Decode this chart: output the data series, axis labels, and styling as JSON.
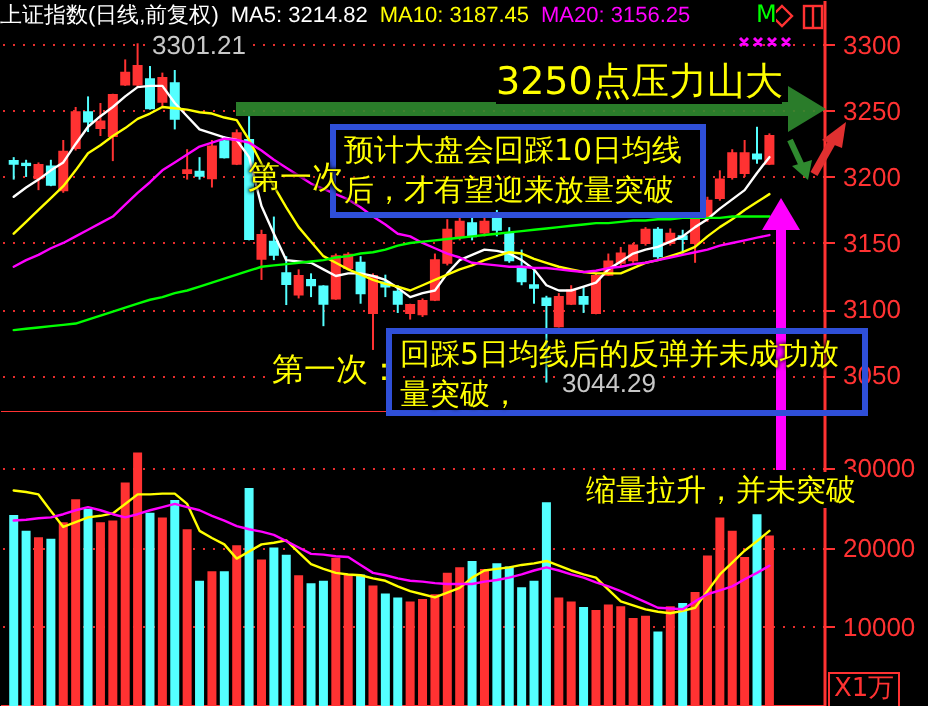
{
  "chart_data": [
    {
      "type": "candlestick",
      "title": "上证指数(日线,前复权)",
      "legend": "top",
      "grid": "y",
      "tick_labels": "y",
      "categories": [
        null,
        null,
        null,
        null,
        null,
        null,
        null,
        null,
        null,
        null,
        null,
        null,
        null,
        null,
        null,
        null,
        null,
        null,
        null,
        null,
        null,
        null,
        null,
        null,
        null,
        null,
        null,
        null,
        null,
        null,
        null,
        null,
        null,
        null,
        null,
        null,
        null,
        null,
        null,
        null,
        null,
        null,
        null,
        null,
        null,
        null,
        null,
        null,
        null,
        null,
        null,
        null,
        null,
        null,
        null,
        null,
        null,
        null,
        null,
        null,
        null,
        null
      ],
      "ohlc": [
        [
          3212,
          3215,
          3198,
          3210
        ],
        [
          3210,
          3213,
          3200,
          3209
        ],
        [
          3199,
          3211,
          3190,
          3209
        ],
        [
          3208,
          3213,
          3193,
          3194
        ],
        [
          3190,
          3228,
          3188,
          3219
        ],
        [
          3222,
          3253,
          3220,
          3249
        ],
        [
          3249,
          3261,
          3234,
          3242
        ],
        [
          3237,
          3256,
          3231,
          3242
        ],
        [
          3231,
          3263,
          3212,
          3262
        ],
        [
          3270,
          3289,
          3269,
          3279
        ],
        [
          3270,
          3301.21,
          3268,
          3284
        ],
        [
          3274,
          3284,
          3251,
          3252
        ],
        [
          3257,
          3279,
          3253,
          3275
        ],
        [
          3271,
          3281,
          3236,
          3244
        ],
        [
          3203,
          3221,
          3198,
          3205
        ],
        [
          3204,
          3215,
          3198,
          3201
        ],
        [
          3199,
          3228,
          3192,
          3223
        ],
        [
          3227,
          3231,
          3214,
          3215
        ],
        [
          3210,
          3236,
          3209,
          3233
        ],
        [
          3228,
          3246,
          3152,
          3153
        ],
        [
          3138,
          3160,
          3122,
          3156
        ],
        [
          3151,
          3170,
          3137,
          3141
        ],
        [
          3127,
          3140,
          3103,
          3119
        ],
        [
          3111,
          3130,
          3108,
          3125
        ],
        [
          3122,
          3127,
          3109,
          3118
        ],
        [
          3117,
          3118,
          3087,
          3104
        ],
        [
          3108,
          3142,
          3107,
          3140
        ],
        [
          3131,
          3143,
          3130,
          3141
        ],
        [
          3135,
          3140,
          3104,
          3112
        ],
        [
          3097,
          3127,
          3069,
          3125
        ],
        [
          3120,
          3126,
          3109,
          3117
        ],
        [
          3113,
          3118,
          3097,
          3104
        ],
        [
          3097,
          3104,
          3092,
          3103
        ],
        [
          3096,
          3108,
          3094,
          3106
        ],
        [
          3107,
          3142,
          3106,
          3137
        ],
        [
          3135,
          3168,
          3133,
          3160
        ],
        [
          3155,
          3170,
          3152,
          3166
        ],
        [
          3165,
          3172,
          3152,
          3155
        ],
        [
          3158,
          3170,
          3155,
          3166
        ],
        [
          3170,
          3175,
          3155,
          3160
        ],
        [
          3157,
          3162,
          3135,
          3137
        ],
        [
          3132,
          3145,
          3118,
          3121
        ],
        [
          3118,
          3130,
          3104,
          3116
        ],
        [
          3108,
          3110,
          3044.29,
          3103
        ],
        [
          3087,
          3112,
          3086,
          3109
        ],
        [
          3104,
          3118,
          3103,
          3114
        ],
        [
          3109,
          3117,
          3097,
          3104
        ],
        [
          3097,
          3127,
          3096,
          3125
        ],
        [
          3126,
          3142,
          3125,
          3136
        ],
        [
          3135,
          3147,
          3132,
          3142
        ],
        [
          3137,
          3150,
          3135,
          3148
        ],
        [
          3150,
          3162,
          3148,
          3160
        ],
        [
          3160,
          3162,
          3138,
          3140
        ],
        [
          3150,
          3161,
          3148,
          3157
        ],
        [
          3155,
          3160,
          3142,
          3153
        ],
        [
          3150,
          3170,
          3135,
          3168
        ],
        [
          3169,
          3185,
          3166,
          3182
        ],
        [
          3184,
          3205,
          3182,
          3198
        ],
        [
          3200,
          3221,
          3198,
          3218
        ],
        [
          3203,
          3228,
          3200,
          3218
        ],
        [
          3217,
          3238,
          3210,
          3214
        ],
        [
          3210,
          3233,
          3209,
          3231
        ]
      ],
      "colors": [
        "#54ffff",
        "#54ffff",
        "#ff3232",
        "#54ffff",
        "#ff3232",
        "#ff3232",
        "#54ffff",
        "#ff3232",
        "#ff3232",
        "#ff3232",
        "#ff3232",
        "#54ffff",
        "#ff3232",
        "#54ffff",
        "#ff3232",
        "#54ffff",
        "#ff3232",
        "#54ffff",
        "#ff3232",
        "#54ffff",
        "#ff3232",
        "#54ffff",
        "#54ffff",
        "#ff3232",
        "#54ffff",
        "#54ffff",
        "#ff3232",
        "#ff3232",
        "#54ffff",
        "#ff3232",
        "#54ffff",
        "#54ffff",
        "#ff3232",
        "#ff3232",
        "#ff3232",
        "#ff3232",
        "#ff3232",
        "#54ffff",
        "#ff3232",
        "#54ffff",
        "#54ffff",
        "#54ffff",
        "#54ffff",
        "#54ffff",
        "#ff3232",
        "#ff3232",
        "#54ffff",
        "#ff3232",
        "#ff3232",
        "#ff3232",
        "#ff3232",
        "#ff3232",
        "#54ffff",
        "#ff3232",
        "#54ffff",
        "#ff3232",
        "#ff3232",
        "#ff3232",
        "#ff3232",
        "#ff3232",
        "#54ffff",
        "#ff3232"
      ],
      "series": [
        {
          "name": "MA5: 3214.82",
          "color": "#ffffff",
          "type": "line",
          "values": [
            3185,
            3192,
            3198,
            3205,
            3211,
            3225,
            3238,
            3246,
            3253,
            3261,
            3268,
            3269,
            3269,
            3256,
            3246,
            3236,
            3233,
            3230,
            3228,
            3215,
            3178,
            3157,
            3137,
            3136,
            3135,
            3130,
            3125,
            3127,
            3127,
            3125,
            3122,
            3116,
            3109,
            3112,
            3114,
            3127,
            3137,
            3141,
            3145,
            3144,
            3142,
            3137,
            3130,
            3118,
            3114,
            3114,
            3117,
            3120,
            3130,
            3136,
            3142,
            3145,
            3147,
            3151,
            3155,
            3162,
            3168,
            3176,
            3183,
            3190,
            3203,
            3215
          ]
        },
        {
          "name": "MA10: 3187.45",
          "color": "#ffff00",
          "type": "line",
          "values": [
            3157,
            3166,
            3175,
            3184,
            3193,
            3205,
            3218,
            3224,
            3231,
            3237,
            3244,
            3248,
            3253,
            3252,
            3251,
            3249,
            3248,
            3245,
            3243,
            3228,
            3210,
            3193,
            3177,
            3162,
            3151,
            3140,
            3135,
            3130,
            3126,
            3122,
            3119,
            3117,
            3114,
            3118,
            3122,
            3126,
            3130,
            3133,
            3137,
            3140,
            3143,
            3142,
            3138,
            3135,
            3132,
            3130,
            3128,
            3127,
            3127,
            3127,
            3131,
            3135,
            3137,
            3140,
            3143,
            3147,
            3155,
            3162,
            3168,
            3175,
            3181,
            3187
          ]
        },
        {
          "name": "MA20: 3156.25",
          "color": "#ff00ff",
          "type": "line",
          "values": [
            3132,
            3137,
            3141,
            3146,
            3150,
            3155,
            3160,
            3165,
            3170,
            3179,
            3188,
            3196,
            3205,
            3211,
            3217,
            3223,
            3226,
            3229,
            3228,
            3226,
            3220,
            3213,
            3207,
            3201,
            3195,
            3191,
            3187,
            3183,
            3177,
            3170,
            3164,
            3157,
            3155,
            3150,
            3146,
            3142,
            3139,
            3135,
            3134,
            3133,
            3132,
            3132,
            3131,
            3131,
            3130,
            3129,
            3128,
            3129,
            3131,
            3132,
            3134,
            3135,
            3137,
            3139,
            3141,
            3143,
            3145,
            3148,
            3150,
            3152,
            3154,
            3156
          ]
        },
        {
          "color": "#00ff00",
          "type": "line",
          "values": [
            3084,
            3085,
            3086,
            3087,
            3088,
            3089,
            3092,
            3095,
            3098,
            3101,
            3104,
            3107,
            3109,
            3112,
            3114,
            3117,
            3120,
            3123,
            3126,
            3129,
            3132,
            3133,
            3134,
            3135,
            3136,
            3137,
            3139,
            3140,
            3142,
            3143,
            3145,
            3148,
            3150,
            3151,
            3152,
            3153,
            3154,
            3155,
            3156,
            3157,
            3158,
            3159,
            3160,
            3161,
            3162,
            3163,
            3164,
            3165,
            3165,
            3166,
            3167,
            3167,
            3168,
            3168,
            3169,
            3169,
            3169,
            3169,
            3170,
            3170,
            3170,
            3170
          ]
        }
      ],
      "ylim": [
        3022,
        3334
      ],
      "yticks": [
        3050,
        3100,
        3150,
        3200,
        3250,
        3300
      ],
      "annotations": [
        "3250点压力山大",
        "预计大盘会回踩10日均线后，才有望迎来放量突破",
        "第一次",
        "第一次：",
        "回踩5日均线后的反弹并未成功放量突破，",
        "M",
        "3301.21",
        "3044.29"
      ]
    },
    {
      "type": "bar",
      "grid": "y",
      "tick_labels": "y",
      "categories": [
        null,
        null,
        null,
        null,
        null,
        null,
        null,
        null,
        null,
        null,
        null,
        null,
        null,
        null,
        null,
        null,
        null,
        null,
        null,
        null,
        null,
        null,
        null,
        null,
        null,
        null,
        null,
        null,
        null,
        null,
        null,
        null,
        null,
        null,
        null,
        null,
        null,
        null,
        null,
        null,
        null,
        null,
        null,
        null,
        null,
        null,
        null,
        null,
        null,
        null,
        null,
        null,
        null,
        null,
        null,
        null,
        null,
        null,
        null,
        null,
        null,
        null
      ],
      "values": [
        24100,
        22100,
        21300,
        21100,
        23200,
        26100,
        24900,
        23200,
        23400,
        28200,
        32000,
        24400,
        23800,
        26000,
        22300,
        15800,
        17000,
        17000,
        20300,
        27500,
        18500,
        20000,
        19100,
        16500,
        15500,
        15800,
        18700,
        16600,
        16600,
        15200,
        14200,
        13700,
        13200,
        13500,
        14100,
        16800,
        17500,
        18300,
        17300,
        18000,
        17600,
        15000,
        15800,
        25700,
        13700,
        13200,
        12500,
        12100,
        12800,
        12600,
        11100,
        11400,
        9400,
        12600,
        13000,
        14400,
        19000,
        23800,
        22100,
        18800,
        24200,
        21500
      ],
      "colors": [
        "#54ffff",
        "#54ffff",
        "#ff3232",
        "#54ffff",
        "#ff3232",
        "#ff3232",
        "#54ffff",
        "#ff3232",
        "#ff3232",
        "#ff3232",
        "#ff3232",
        "#54ffff",
        "#ff3232",
        "#54ffff",
        "#ff3232",
        "#54ffff",
        "#ff3232",
        "#54ffff",
        "#ff3232",
        "#54ffff",
        "#ff3232",
        "#54ffff",
        "#54ffff",
        "#ff3232",
        "#54ffff",
        "#54ffff",
        "#ff3232",
        "#ff3232",
        "#54ffff",
        "#ff3232",
        "#54ffff",
        "#54ffff",
        "#ff3232",
        "#ff3232",
        "#ff3232",
        "#ff3232",
        "#ff3232",
        "#54ffff",
        "#ff3232",
        "#54ffff",
        "#54ffff",
        "#54ffff",
        "#54ffff",
        "#54ffff",
        "#ff3232",
        "#ff3232",
        "#54ffff",
        "#ff3232",
        "#ff3232",
        "#ff3232",
        "#ff3232",
        "#ff3232",
        "#54ffff",
        "#ff3232",
        "#54ffff",
        "#ff3232",
        "#ff3232",
        "#ff3232",
        "#ff3232",
        "#ff3232",
        "#54ffff",
        "#ff3232"
      ],
      "series": [
        {
          "color": "#ffff00",
          "type": "line",
          "values": [
            27200,
            27000,
            26700,
            24600,
            22600,
            23200,
            23800,
            24000,
            24300,
            25500,
            26700,
            26700,
            26800,
            26800,
            25500,
            22100,
            21200,
            20400,
            18600,
            19500,
            20400,
            20600,
            20900,
            19400,
            17900,
            17300,
            16800,
            16600,
            16500,
            16100,
            15800,
            15100,
            14500,
            14100,
            13700,
            14300,
            14900,
            16200,
            17100,
            17300,
            17500,
            17800,
            18000,
            18300,
            17700,
            17100,
            16600,
            16200,
            14700,
            13200,
            12700,
            12200,
            11900,
            11700,
            12000,
            12400,
            14500,
            16600,
            18100,
            19600,
            20800,
            22100
          ]
        },
        {
          "color": "#ff00ff",
          "type": "line",
          "values": [
            23400,
            23500,
            23700,
            23800,
            24200,
            24700,
            25100,
            24700,
            24200,
            23800,
            24200,
            24700,
            25100,
            25500,
            25100,
            24700,
            24000,
            23400,
            22700,
            22300,
            22000,
            21600,
            20800,
            20000,
            19200,
            19100,
            18900,
            18800,
            17800,
            16800,
            16500,
            16100,
            15800,
            15700,
            15500,
            15400,
            15400,
            15400,
            15700,
            15900,
            16200,
            16600,
            17100,
            17500,
            17100,
            16600,
            16200,
            15600,
            15100,
            14500,
            13800,
            13100,
            12400,
            12300,
            12200,
            13200,
            14100,
            14600,
            15100,
            16000,
            16800,
            17700
          ]
        }
      ],
      "ylim": [
        0,
        37100
      ],
      "yticks": [
        10000,
        20000,
        30000
      ],
      "annotations": [
        "缩量拉升，并未突破",
        "X1万"
      ]
    }
  ]
}
